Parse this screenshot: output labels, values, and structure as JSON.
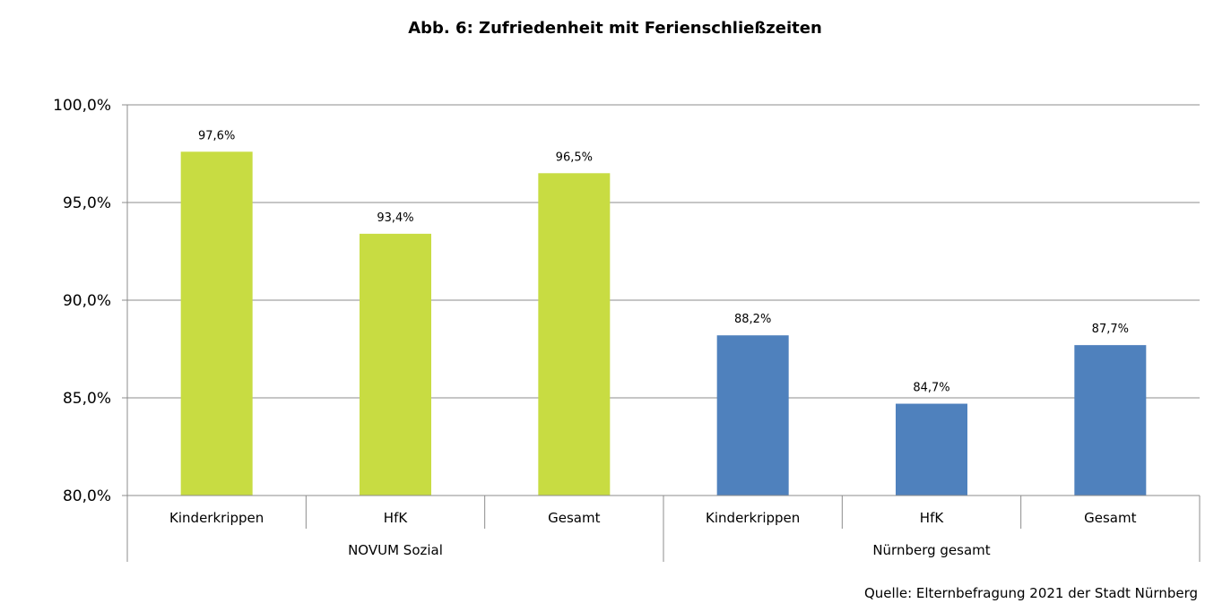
{
  "chart_data": {
    "type": "bar",
    "title": "Abb. 6: Zufriedenheit mit Ferienschließzeiten",
    "source": "Quelle: Elternbefragung 2021 der Stadt Nürnberg",
    "ylim": [
      80,
      100
    ],
    "yticks": [
      80,
      85,
      90,
      95,
      100
    ],
    "ytick_labels": [
      "80,0%",
      "85,0%",
      "90,0%",
      "95,0%",
      "100,0%"
    ],
    "grid": true,
    "groups": [
      {
        "name": "NOVUM Sozial",
        "color": "#C8DC42",
        "categories": [
          "Kinderkrippen",
          "HfK",
          "Gesamt"
        ],
        "values": [
          97.6,
          93.4,
          96.5
        ],
        "labels": [
          "97,6%",
          "93,4%",
          "96,5%"
        ]
      },
      {
        "name": "Nürnberg gesamt",
        "color": "#4F81BD",
        "categories": [
          "Kinderkrippen",
          "HfK",
          "Gesamt"
        ],
        "values": [
          88.2,
          84.7,
          87.7
        ],
        "labels": [
          "88,2%",
          "84,7%",
          "87,7%"
        ]
      }
    ]
  }
}
